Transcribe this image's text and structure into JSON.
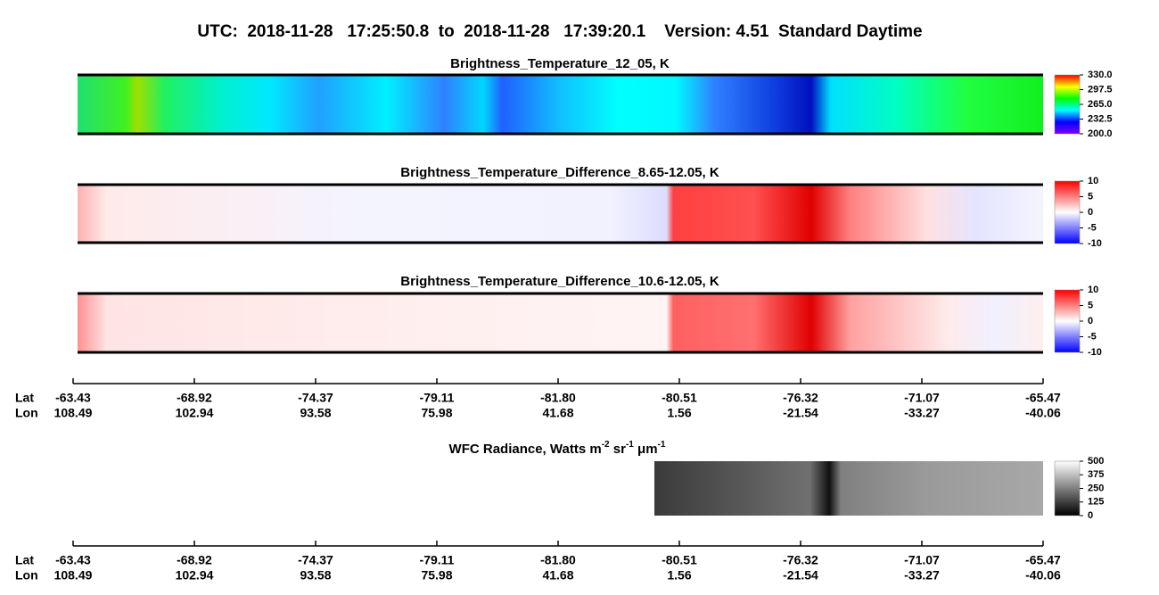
{
  "title": "UTC:  2018-11-28   17:25:50.8  to  2018-11-28   17:39:20.1    Version: 4.51  Standard Daytime",
  "chart_data": [
    {
      "type": "heatmap",
      "title": "Brightness_Temperature_12_05, K",
      "colormap": [
        "#8000ff",
        "#0000ff",
        "#00ffff",
        "#00ff00",
        "#ffff00",
        "#ff0000"
      ],
      "clim": [
        200,
        330
      ],
      "cticks": [
        {
          "value": 330,
          "label": "330.0"
        },
        297.5,
        {
          "value": 265,
          "label": "265.0"
        },
        232.5,
        {
          "value": 200,
          "label": "200.0"
        }
      ]
    },
    {
      "type": "heatmap",
      "title": "Brightness_Temperature_Difference_8.65-12.05, K",
      "colormap": [
        "#0000ff",
        "#ffffff",
        "#ff0000"
      ],
      "clim": [
        -10,
        10
      ],
      "cticks": [
        10,
        5,
        0,
        -5,
        -10
      ]
    },
    {
      "type": "heatmap",
      "title": "Brightness_Temperature_Difference_10.6-12.05, K",
      "colormap": [
        "#0000ff",
        "#ffffff",
        "#ff0000"
      ],
      "clim": [
        -10,
        10
      ],
      "cticks": [
        10,
        5,
        0,
        -5,
        -10
      ]
    },
    {
      "type": "heatmap",
      "title_parts": [
        "WFC Radiance, Watts m",
        "-2",
        " sr",
        "-1",
        " μm",
        "-1"
      ],
      "colormap": [
        "#000000",
        "#ffffff"
      ],
      "clim": [
        0,
        500
      ],
      "cticks": [
        500,
        375,
        250,
        125,
        0
      ]
    }
  ],
  "axis": {
    "row_labels": [
      "Lat",
      "Lon"
    ],
    "lat": [
      "-63.43",
      "-68.92",
      "-74.37",
      "-79.11",
      "-81.80",
      "-80.51",
      "-76.32",
      "-71.07",
      "-65.47"
    ],
    "lon": [
      "108.49",
      "102.94",
      "93.58",
      "75.98",
      "41.68",
      "1.56",
      "-21.54",
      "-33.27",
      "-40.06"
    ]
  }
}
